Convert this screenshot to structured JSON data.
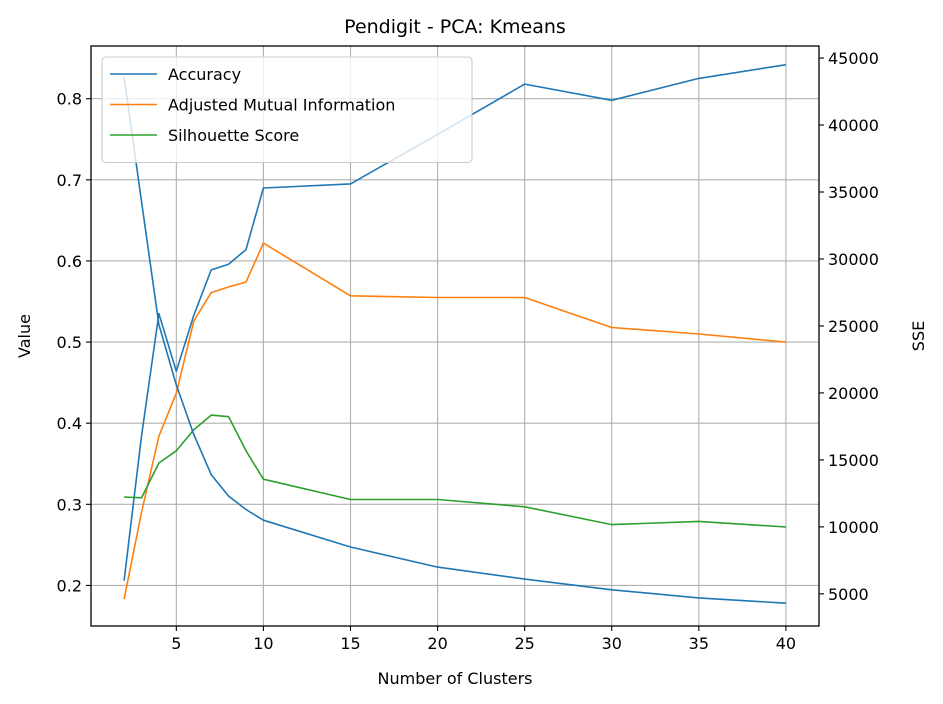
{
  "chart_data": {
    "type": "line",
    "title": "Pendigit - PCA: Kmeans",
    "xlabel": "Number of Clusters",
    "ylabel": "Value",
    "y2label": "SSE",
    "x": [
      2,
      3,
      4,
      5,
      6,
      7,
      8,
      9,
      10,
      15,
      20,
      25,
      30,
      35,
      40
    ],
    "xticks": [
      5,
      10,
      15,
      20,
      25,
      30,
      35,
      40
    ],
    "xlim": [
      0.1,
      41.9
    ],
    "yticks": [
      0.2,
      0.3,
      0.4,
      0.5,
      0.6,
      0.7,
      0.8
    ],
    "ylim": [
      0.15,
      0.865
    ],
    "y2ticks": [
      5000,
      10000,
      15000,
      20000,
      25000,
      30000,
      35000,
      40000,
      45000
    ],
    "y2lim": [
      2600,
      45900
    ],
    "grid": true,
    "legend": "top-left",
    "series": [
      {
        "name": "Accuracy",
        "axis": "left",
        "color": "#1f77b4",
        "values": [
          0.206,
          0.384,
          0.535,
          0.464,
          0.533,
          0.589,
          0.596,
          0.614,
          0.69,
          0.695,
          0.756,
          0.818,
          0.798,
          0.825,
          0.842
        ]
      },
      {
        "name": "Adjusted Mutual Information",
        "axis": "left",
        "color": "#ff7f0e",
        "values": [
          0.183,
          0.29,
          0.384,
          0.437,
          0.526,
          0.561,
          0.568,
          0.574,
          0.622,
          0.557,
          0.555,
          0.555,
          0.518,
          0.51,
          0.5
        ]
      },
      {
        "name": "Silhouette Score",
        "axis": "left",
        "color": "#2ca02c",
        "values": [
          0.309,
          0.308,
          0.351,
          0.366,
          0.392,
          0.41,
          0.408,
          0.366,
          0.331,
          0.306,
          0.306,
          0.297,
          0.275,
          0.279,
          0.272
        ]
      },
      {
        "name": "SSE",
        "axis": "right",
        "color": "#1f77b4",
        "values": [
          43600,
          34300,
          25100,
          20600,
          16900,
          13900,
          12300,
          11300,
          10500,
          8500,
          7000,
          6100,
          5300,
          4700,
          4300
        ]
      }
    ]
  }
}
